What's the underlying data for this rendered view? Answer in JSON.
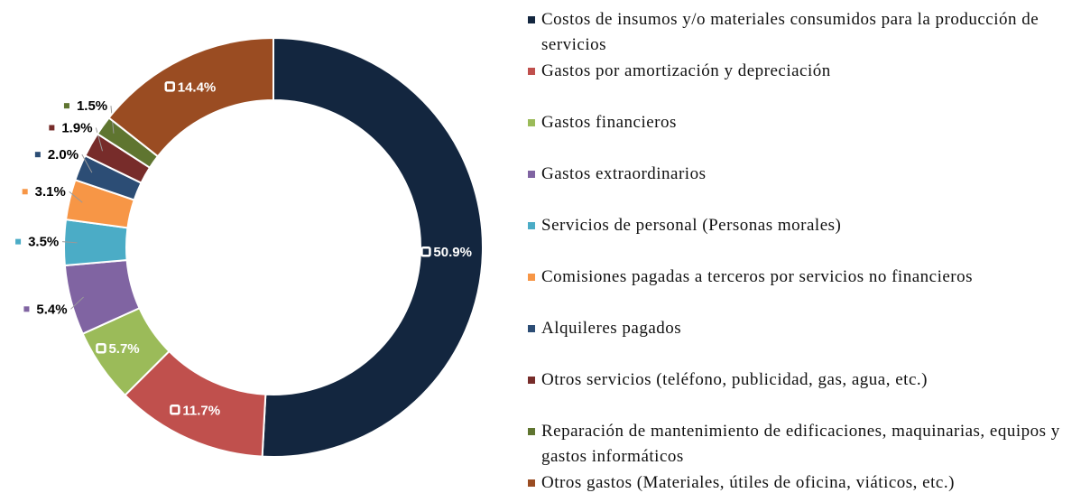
{
  "chart_data": {
    "type": "donut",
    "categories": [
      "Costos  de insumos y/o materiales consumidos para la producción de servicios",
      "Gastos por amortización y depreciación",
      "Gastos financieros",
      "Gastos extraordinarios",
      "Servicios de personal (Personas morales)",
      "Comisiones pagadas a terceros por servicios no financieros",
      "Alquileres pagados",
      "Otros servicios (teléfono, publicidad, gas, agua, etc.)",
      "Reparación de mantenimiento de edificaciones, maquinarias, equipos y gastos informáticos",
      "Otros gastos (Materiales, útiles de oficina, viáticos, etc.)"
    ],
    "values": [
      50.9,
      11.7,
      5.7,
      5.4,
      3.5,
      3.1,
      2.0,
      1.9,
      1.5,
      14.4
    ],
    "value_labels": [
      "50.9%",
      "11.7%",
      "5.7%",
      "5.4%",
      "3.5%",
      "3.1%",
      "2.0%",
      "1.9%",
      "1.5%",
      "14.4%"
    ],
    "colors": [
      "#13263f",
      "#c0504d",
      "#9bbb59",
      "#8064a2",
      "#4bacc6",
      "#f79646",
      "#2c4d75",
      "#772c2a",
      "#5f7530",
      "#9a4c22"
    ],
    "legend": "right"
  }
}
